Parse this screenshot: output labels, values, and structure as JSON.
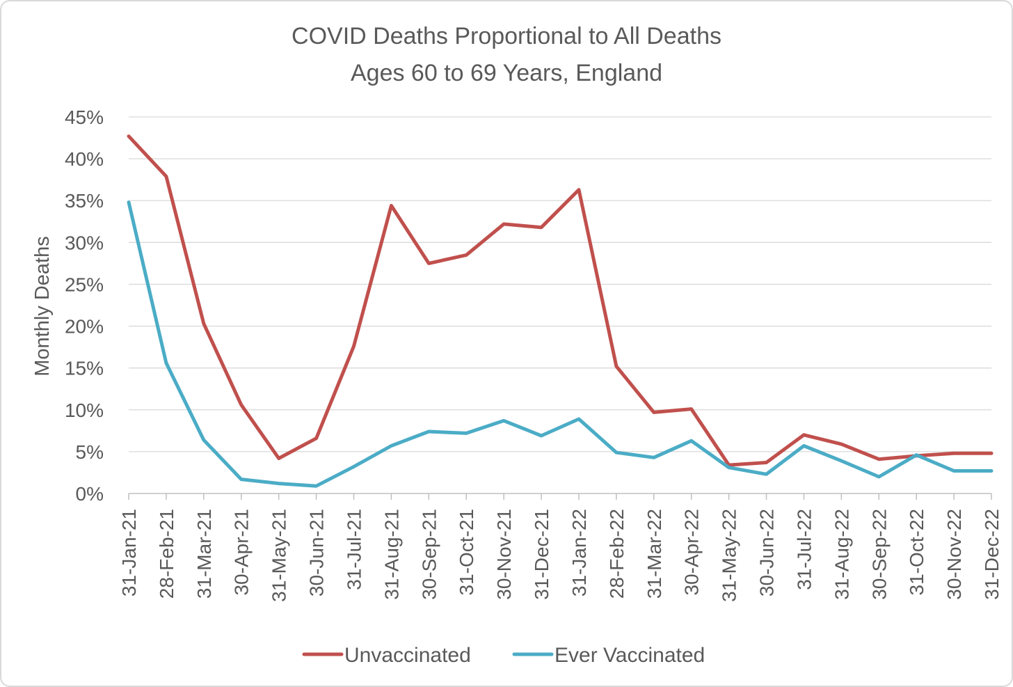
{
  "chart_data": {
    "type": "line",
    "title": "COVID Deaths Proportional to All Deaths",
    "subtitle": "Ages 60 to 69 Years, England",
    "xlabel": "",
    "ylabel": "Monthly Deaths",
    "ylim": [
      0,
      45
    ],
    "y_ticks": [
      "0%",
      "5%",
      "10%",
      "15%",
      "20%",
      "25%",
      "30%",
      "35%",
      "40%",
      "45%"
    ],
    "grid": true,
    "legend_position": "bottom",
    "categories": [
      "31-Jan-21",
      "28-Feb-21",
      "31-Mar-21",
      "30-Apr-21",
      "31-May-21",
      "30-Jun-21",
      "31-Jul-21",
      "31-Aug-21",
      "30-Sep-21",
      "31-Oct-21",
      "30-Nov-21",
      "31-Dec-21",
      "31-Jan-22",
      "28-Feb-22",
      "31-Mar-22",
      "30-Apr-22",
      "31-May-22",
      "30-Jun-22",
      "31-Jul-22",
      "31-Aug-22",
      "30-Sep-22",
      "31-Oct-22",
      "30-Nov-22",
      "31-Dec-22"
    ],
    "series": [
      {
        "name": "Unvaccinated",
        "color": "#c0504d",
        "values": [
          42.7,
          37.9,
          20.3,
          10.6,
          4.2,
          6.6,
          17.6,
          34.4,
          27.5,
          28.5,
          32.2,
          31.8,
          36.3,
          15.2,
          9.7,
          10.1,
          3.4,
          3.7,
          7.0,
          5.9,
          4.1,
          4.5,
          4.8,
          4.8
        ]
      },
      {
        "name": "Ever Vaccinated",
        "color": "#4bacc6",
        "values": [
          34.8,
          15.6,
          6.4,
          1.7,
          1.2,
          0.9,
          3.2,
          5.7,
          7.4,
          7.2,
          8.7,
          6.9,
          8.9,
          4.9,
          4.3,
          6.3,
          3.1,
          2.3,
          5.7,
          3.9,
          2.0,
          4.6,
          2.7,
          2.7
        ]
      }
    ]
  }
}
